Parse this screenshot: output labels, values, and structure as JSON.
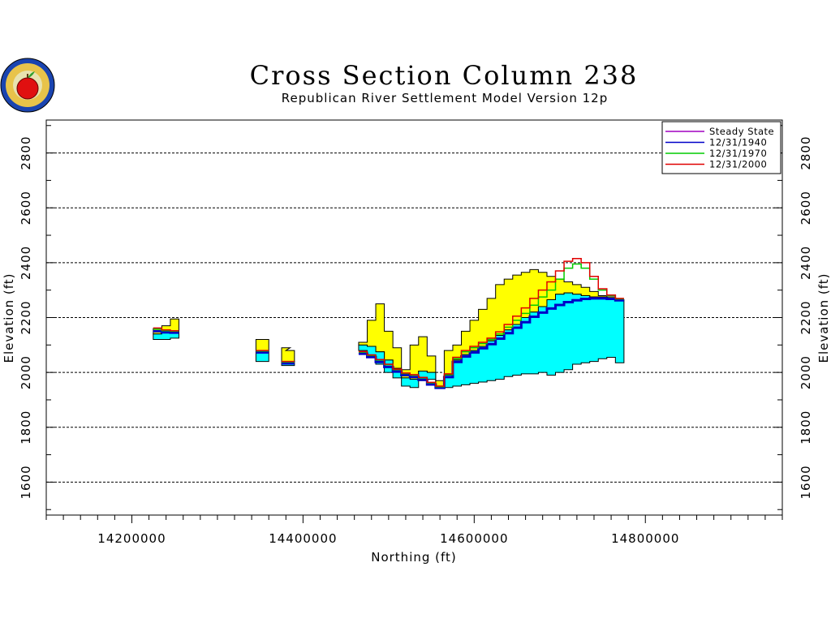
{
  "chart_data": {
    "type": "area",
    "title": "Cross Section Column 238",
    "subtitle": "Republican River Settlement Model Version 12p",
    "xlabel": "Northing (ft)",
    "ylabel": "Elevation (ft)",
    "xlim": [
      14100000,
      14960000
    ],
    "ylim": [
      1480000,
      2920
    ],
    "xticks": [
      14200000,
      14400000,
      14600000,
      14800000
    ],
    "yticks": [
      1600,
      1800,
      2000,
      2200,
      2400,
      2600,
      2800
    ],
    "grid": true,
    "legend_position": "top-right",
    "colors": {
      "top_layer": "#ffff00",
      "bottom_layer": "#00ffff",
      "steady_state": "#a000c0",
      "y1940": "#0000c8",
      "y1970": "#00cc00",
      "y2000": "#e00000",
      "grid": "#000000"
    },
    "layers": [
      {
        "name": "top-layer",
        "segments": [
          {
            "x": [
              14230000,
              14240000,
              14250000
            ],
            "top": [
              2160,
              2170,
              2195
            ],
            "bottom": [
              2140,
              2145,
              2150
            ]
          },
          {
            "x": [
              14350000,
              14355000
            ],
            "top": [
              2120,
              2120
            ],
            "bottom": [
              2075,
              2075
            ]
          },
          {
            "x": [
              14380000,
              14385000
            ],
            "top": [
              2090,
              2080
            ],
            "bottom": [
              2040,
              2040
            ]
          },
          {
            "x": [
              14470000,
              14480000,
              14490000,
              14500000,
              14510000,
              14520000,
              14530000,
              14540000,
              14550000,
              14560000,
              14570000,
              14580000,
              14590000,
              14600000,
              14610000,
              14620000,
              14630000,
              14640000,
              14650000,
              14660000,
              14670000,
              14680000,
              14690000,
              14700000,
              14710000,
              14720000,
              14730000,
              14740000,
              14750000,
              14760000,
              14770000
            ],
            "top": [
              2110,
              2190,
              2250,
              2150,
              2090,
              2010,
              2100,
              2130,
              2060,
              1970,
              2080,
              2100,
              2150,
              2190,
              2230,
              2270,
              2320,
              2340,
              2355,
              2365,
              2375,
              2365,
              2350,
              2340,
              2330,
              2320,
              2310,
              2295,
              2280,
              2275,
              2265
            ],
            "bottom": [
              2100,
              2095,
              2075,
              2045,
              2015,
              1980,
              1975,
              2005,
              2000,
              1950,
              1990,
              2045,
              2065,
              2080,
              2095,
              2115,
              2135,
              2155,
              2175,
              2200,
              2220,
              2240,
              2265,
              2285,
              2290,
              2285,
              2280,
              2275,
              2275,
              2270,
              2265
            ]
          }
        ]
      },
      {
        "name": "bottom-layer",
        "segments": [
          {
            "x": [
              14230000,
              14240000,
              14250000
            ],
            "top": [
              2140,
              2145,
              2150
            ],
            "bottom": [
              2120,
              2120,
              2125
            ]
          },
          {
            "x": [
              14350000,
              14355000
            ],
            "top": [
              2075,
              2075
            ],
            "bottom": [
              2040,
              2040
            ]
          },
          {
            "x": [
              14380000,
              14385000
            ],
            "top": [
              2040,
              2040
            ],
            "bottom": [
              2025,
              2025
            ]
          },
          {
            "x": [
              14470000,
              14480000,
              14490000,
              14500000,
              14510000,
              14520000,
              14530000,
              14540000,
              14550000,
              14560000,
              14570000,
              14580000,
              14590000,
              14600000,
              14610000,
              14620000,
              14630000,
              14640000,
              14650000,
              14660000,
              14670000,
              14680000,
              14690000,
              14700000,
              14710000,
              14720000,
              14730000,
              14740000,
              14750000,
              14760000,
              14770000
            ],
            "top": [
              2100,
              2095,
              2075,
              2045,
              2015,
              1980,
              1975,
              2005,
              2000,
              1950,
              1990,
              2045,
              2065,
              2080,
              2095,
              2115,
              2135,
              2155,
              2175,
              2200,
              2220,
              2240,
              2265,
              2285,
              2290,
              2285,
              2280,
              2275,
              2275,
              2270,
              2265
            ],
            "bottom": [
              2080,
              2060,
              2030,
              2000,
              1980,
              1950,
              1945,
              1970,
              1975,
              1945,
              1945,
              1950,
              1955,
              1960,
              1965,
              1970,
              1975,
              1985,
              1990,
              1995,
              1995,
              2000,
              1990,
              2000,
              2010,
              2030,
              2035,
              2040,
              2050,
              2055,
              2035
            ]
          }
        ]
      }
    ],
    "series": [
      {
        "name": "Steady State",
        "segments": [
          {
            "x": [
              14230000,
              14240000,
              14250000
            ],
            "y": [
              2152,
              2148,
              2146
            ]
          },
          {
            "x": [
              14350000,
              14355000
            ],
            "y": [
              2075,
              2075
            ]
          },
          {
            "x": [
              14380000,
              14385000
            ],
            "y": [
              2035,
              2035
            ]
          },
          {
            "x": [
              14470000,
              14480000,
              14490000,
              14500000,
              14510000,
              14520000,
              14530000,
              14540000,
              14550000,
              14560000,
              14570000,
              14580000,
              14590000,
              14600000,
              14610000,
              14620000,
              14630000,
              14640000,
              14650000,
              14660000,
              14670000,
              14680000,
              14690000,
              14700000,
              14710000,
              14720000,
              14730000,
              14740000,
              14750000,
              14760000,
              14770000
            ],
            "y": [
              2070,
              2058,
              2040,
              2022,
              2005,
              1992,
              1985,
              1975,
              1958,
              1945,
              1985,
              2040,
              2060,
              2075,
              2090,
              2105,
              2125,
              2145,
              2165,
              2185,
              2205,
              2220,
              2235,
              2248,
              2258,
              2265,
              2270,
              2272,
              2272,
              2270,
              2265
            ]
          }
        ]
      },
      {
        "name": "12/31/1940",
        "segments": [
          {
            "x": [
              14230000,
              14240000,
              14250000
            ],
            "y": [
              2150,
              2146,
              2145
            ]
          },
          {
            "x": [
              14350000,
              14355000
            ],
            "y": [
              2073,
              2073
            ]
          },
          {
            "x": [
              14380000,
              14385000
            ],
            "y": [
              2033,
              2033
            ]
          },
          {
            "x": [
              14470000,
              14480000,
              14490000,
              14500000,
              14510000,
              14520000,
              14530000,
              14540000,
              14550000,
              14560000,
              14570000,
              14580000,
              14590000,
              14600000,
              14610000,
              14620000,
              14630000,
              14640000,
              14650000,
              14660000,
              14670000,
              14680000,
              14690000,
              14700000,
              14710000,
              14720000,
              14730000,
              14740000,
              14750000,
              14760000,
              14770000
            ],
            "y": [
              2068,
              2056,
              2038,
              2020,
              2003,
              1990,
              1983,
              1973,
              1956,
              1944,
              1983,
              2038,
              2058,
              2073,
              2088,
              2103,
              2123,
              2143,
              2163,
              2183,
              2203,
              2218,
              2233,
              2246,
              2256,
              2263,
              2268,
              2270,
              2270,
              2268,
              2263
            ]
          }
        ]
      },
      {
        "name": "12/31/1970",
        "segments": [
          {
            "x": [
              14230000,
              14240000,
              14250000
            ],
            "y": [
              2158,
              2152,
              2150
            ]
          },
          {
            "x": [
              14350000,
              14355000
            ],
            "y": [
              2078,
              2078
            ]
          },
          {
            "x": [
              14380000,
              14385000
            ],
            "y": [
              2038,
              2038
            ]
          },
          {
            "x": [
              14470000,
              14480000,
              14490000,
              14500000,
              14510000,
              14520000,
              14530000,
              14540000,
              14550000,
              14560000,
              14570000,
              14580000,
              14590000,
              14600000,
              14610000,
              14620000,
              14630000,
              14640000,
              14650000,
              14660000,
              14670000,
              14680000,
              14690000,
              14700000,
              14710000,
              14720000,
              14730000,
              14740000,
              14750000,
              14760000,
              14770000
            ],
            "y": [
              2074,
              2062,
              2045,
              2028,
              2010,
              1996,
              1990,
              1980,
              1962,
              1948,
              1992,
              2050,
              2075,
              2090,
              2105,
              2120,
              2140,
              2165,
              2190,
              2215,
              2245,
              2275,
              2300,
              2340,
              2380,
              2395,
              2380,
              2340,
              2300,
              2280,
              2268
            ]
          }
        ]
      },
      {
        "name": "12/31/2000",
        "segments": [
          {
            "x": [
              14230000,
              14240000,
              14250000
            ],
            "y": [
              2162,
              2155,
              2152
            ]
          },
          {
            "x": [
              14350000,
              14355000
            ],
            "y": [
              2080,
              2080
            ]
          },
          {
            "x": [
              14380000,
              14385000
            ],
            "y": [
              2040,
              2040
            ]
          },
          {
            "x": [
              14470000,
              14480000,
              14490000,
              14500000,
              14510000,
              14520000,
              14530000,
              14540000,
              14550000,
              14560000,
              14570000,
              14580000,
              14590000,
              14600000,
              14610000,
              14620000,
              14630000,
              14640000,
              14650000,
              14660000,
              14670000,
              14680000,
              14690000,
              14700000,
              14710000,
              14720000,
              14730000,
              14740000,
              14750000,
              14760000,
              14770000
            ],
            "y": [
              2076,
              2064,
              2047,
              2030,
              2012,
              1998,
              1992,
              1982,
              1964,
              1950,
              1995,
              2055,
              2080,
              2095,
              2110,
              2125,
              2148,
              2175,
              2205,
              2235,
              2270,
              2300,
              2330,
              2370,
              2405,
              2415,
              2400,
              2350,
              2305,
              2282,
              2270
            ]
          }
        ]
      }
    ]
  }
}
